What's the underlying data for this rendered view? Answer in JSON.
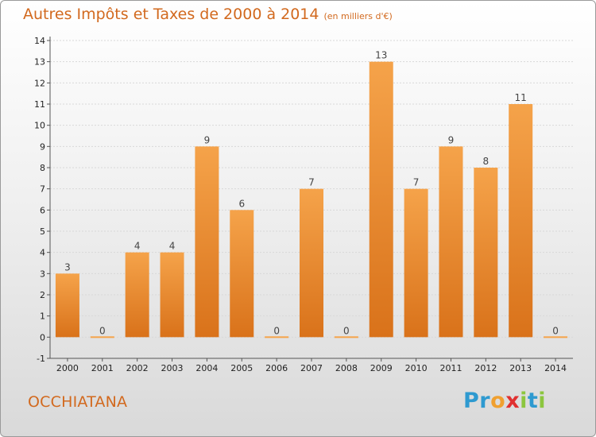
{
  "title": "Autres Impôts et Taxes de 2000 à 2014",
  "unit_note": "(en milliers d'€)",
  "commune": "OCCHIATANA",
  "logo": {
    "text": "Proxiti",
    "letters": [
      "P",
      "r",
      "o",
      "x",
      "i",
      "t",
      "i"
    ],
    "colors": [
      "#2e9ad0",
      "#2e9ad0",
      "#f0a030",
      "#e03030",
      "#8cc63f",
      "#2e9ad0",
      "#8cc63f"
    ]
  },
  "colors": {
    "bar_light": "#f5a34a",
    "bar_dark": "#d9721a",
    "accent_text": "#d2691e"
  },
  "chart_data": {
    "type": "bar",
    "categories": [
      "2000",
      "2001",
      "2002",
      "2003",
      "2004",
      "2005",
      "2006",
      "2007",
      "2008",
      "2009",
      "2010",
      "2011",
      "2012",
      "2013",
      "2014"
    ],
    "values": [
      3,
      0,
      4,
      4,
      9,
      6,
      0,
      7,
      0,
      13,
      7,
      9,
      8,
      11,
      0
    ],
    "data_labels": [
      "3",
      "0",
      "4",
      "4",
      "9",
      "6",
      "0",
      "7",
      "0",
      "13",
      "7",
      "9",
      "8",
      "11",
      "0"
    ],
    "ylim": [
      -1,
      14
    ],
    "yticks": [
      -1,
      0,
      1,
      2,
      3,
      4,
      5,
      6,
      7,
      8,
      9,
      10,
      11,
      12,
      13,
      14
    ],
    "ytick_labels": [
      "-1",
      "0",
      "1",
      "2",
      "3",
      "4",
      "5",
      "6",
      "7",
      "8",
      "9",
      "10",
      "11",
      "12",
      "13",
      "14"
    ],
    "grid": true,
    "title": "Autres Impôts et Taxes de 2000 à 2014"
  }
}
